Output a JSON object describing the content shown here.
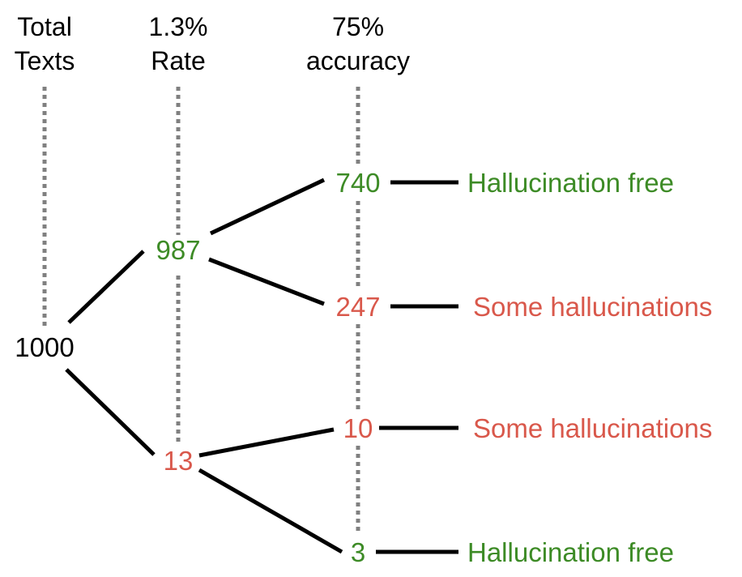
{
  "colors": {
    "neutral": "#000000",
    "free": "#3d8b26",
    "halluc": "#d9584b",
    "guide": "#808080"
  },
  "headers": {
    "total_line1": "Total",
    "total_line2": "Texts",
    "rate_line1": "1.3%",
    "rate_line2": "Rate",
    "accuracy_line1": "75%",
    "accuracy_line2": "accuracy"
  },
  "nodes": {
    "root": "1000",
    "clean": "987",
    "flagged": "13",
    "clean_free": "740",
    "clean_halluc": "247",
    "flagged_halluc": "10",
    "flagged_free": "3"
  },
  "outcomes": {
    "clean_free": "Hallucination free",
    "clean_halluc": "Some hallucinations",
    "flagged_halluc": "Some hallucinations",
    "flagged_free": "Hallucination free"
  }
}
